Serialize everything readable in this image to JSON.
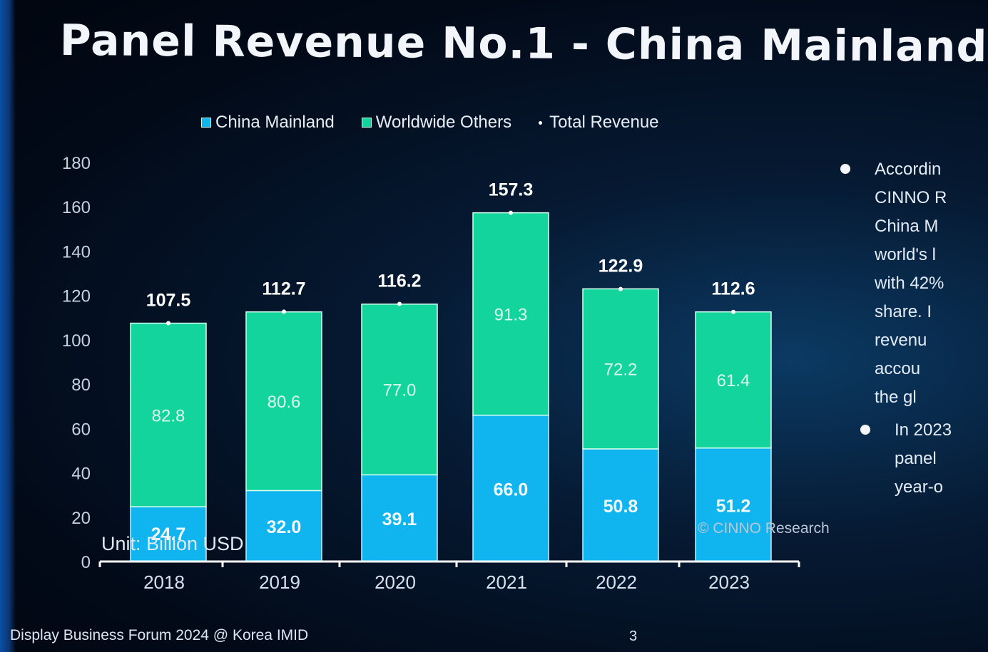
{
  "slide": {
    "title": "Panel Revenue No.1 - China Mainland",
    "unit": "Unit: Billion USD",
    "watermark": "© CINNO Research",
    "footer": "Display Business Forum 2024 @ Korea IMID",
    "page_number": "3",
    "bullets": [
      {
        "lines": [
          "Accordin",
          "CINNO R",
          "China M",
          "world's l",
          "with 42%",
          "share. I",
          "revenu",
          "accou",
          "the gl"
        ]
      },
      {
        "lines": [
          "In 2023",
          "panel",
          "year-o"
        ]
      }
    ],
    "colors": {
      "china": "#10b4ee",
      "others": "#12d49c",
      "background": "#020a18"
    }
  },
  "chart_data": {
    "type": "bar",
    "stacked": true,
    "title": "Panel Revenue No.1 - China Mainland",
    "xlabel": "",
    "ylabel": "Unit: Billion USD",
    "categories": [
      "2018",
      "2019",
      "2020",
      "2021",
      "2022",
      "2023"
    ],
    "series": [
      {
        "name": "China Mainland",
        "values": [
          24.7,
          32.0,
          39.1,
          66.0,
          50.8,
          51.2
        ],
        "color": "#10b4ee"
      },
      {
        "name": "Worldwide Others",
        "values": [
          82.8,
          80.6,
          77.0,
          91.3,
          72.2,
          61.4
        ],
        "color": "#12d49c"
      }
    ],
    "total": {
      "name": "Total Revenue",
      "values": [
        107.5,
        112.7,
        116.2,
        157.3,
        122.9,
        112.6
      ]
    },
    "ylim": [
      0,
      180
    ],
    "yticks": [
      "0",
      "20",
      "40",
      "60",
      "80",
      "100",
      "120",
      "140",
      "160",
      "180"
    ],
    "grid": false,
    "legend": "top"
  }
}
